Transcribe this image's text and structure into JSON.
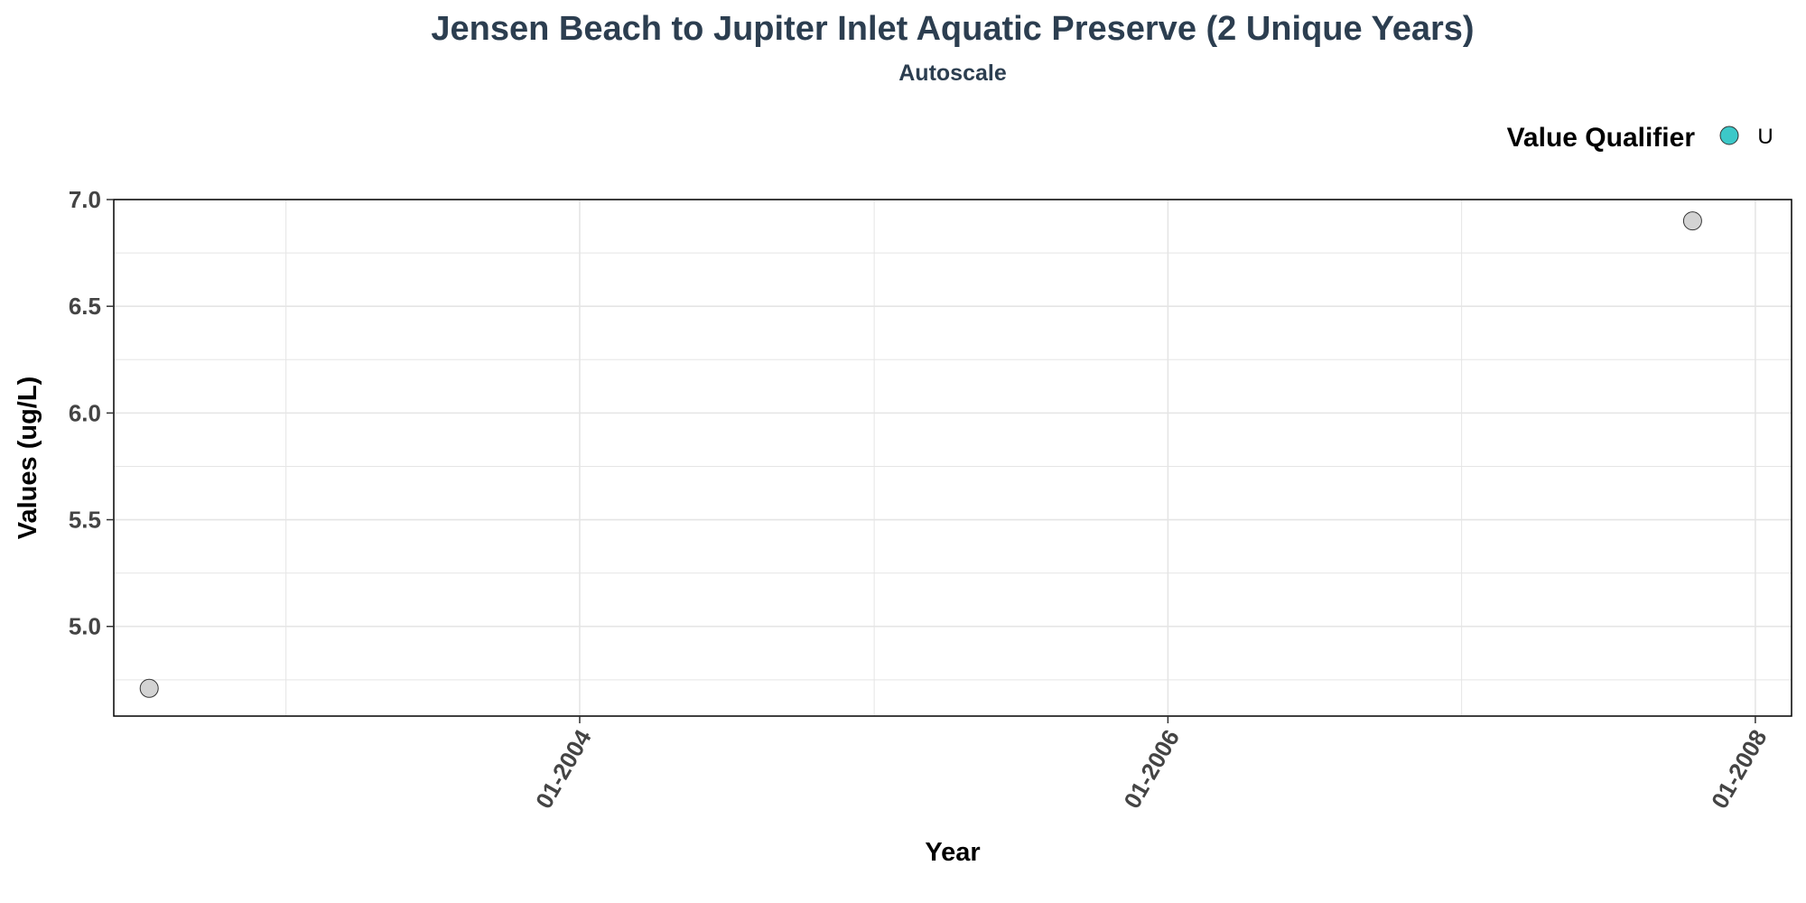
{
  "chart_data": {
    "type": "scatter",
    "title": "Jensen Beach to Jupiter Inlet Aquatic Preserve (2 Unique Years)",
    "subtitle": "Autoscale",
    "xlabel": "Year",
    "ylabel": "Values (ug/L)",
    "x_axis_type": "date",
    "xlim": [
      "2002-06-01",
      "2008-02-15"
    ],
    "ylim": [
      4.58,
      7.0
    ],
    "x_ticks": [
      {
        "value": "2004-01-01",
        "label": "01-2004"
      },
      {
        "value": "2006-01-01",
        "label": "01-2006"
      },
      {
        "value": "2008-01-01",
        "label": "01-2008"
      }
    ],
    "x_minor_ticks": [
      "2003-01-01",
      "2005-01-01",
      "2007-01-01"
    ],
    "y_ticks": [
      {
        "value": 5.0,
        "label": "5.0"
      },
      {
        "value": 5.5,
        "label": "5.5"
      },
      {
        "value": 6.0,
        "label": "6.0"
      },
      {
        "value": 6.5,
        "label": "6.5"
      },
      {
        "value": 7.0,
        "label": "7.0"
      }
    ],
    "y_minor_ticks": [
      4.75,
      5.25,
      5.75,
      6.25,
      6.75
    ],
    "grid": true,
    "series": [
      {
        "marker_color": "#d3d3d3",
        "points": [
          {
            "x": "2002-07-15",
            "y": 4.71
          },
          {
            "x": "2007-10-15",
            "y": 6.9
          }
        ]
      }
    ],
    "legend": {
      "title": "Value Qualifier",
      "position": "top-right",
      "items": [
        {
          "label": "U",
          "color": "#3cc8c8"
        }
      ]
    },
    "colors": {
      "title": "#2c3e50",
      "gridline": "#e5e5e5",
      "axis": "#000000",
      "marker_outline": "#333333"
    }
  }
}
